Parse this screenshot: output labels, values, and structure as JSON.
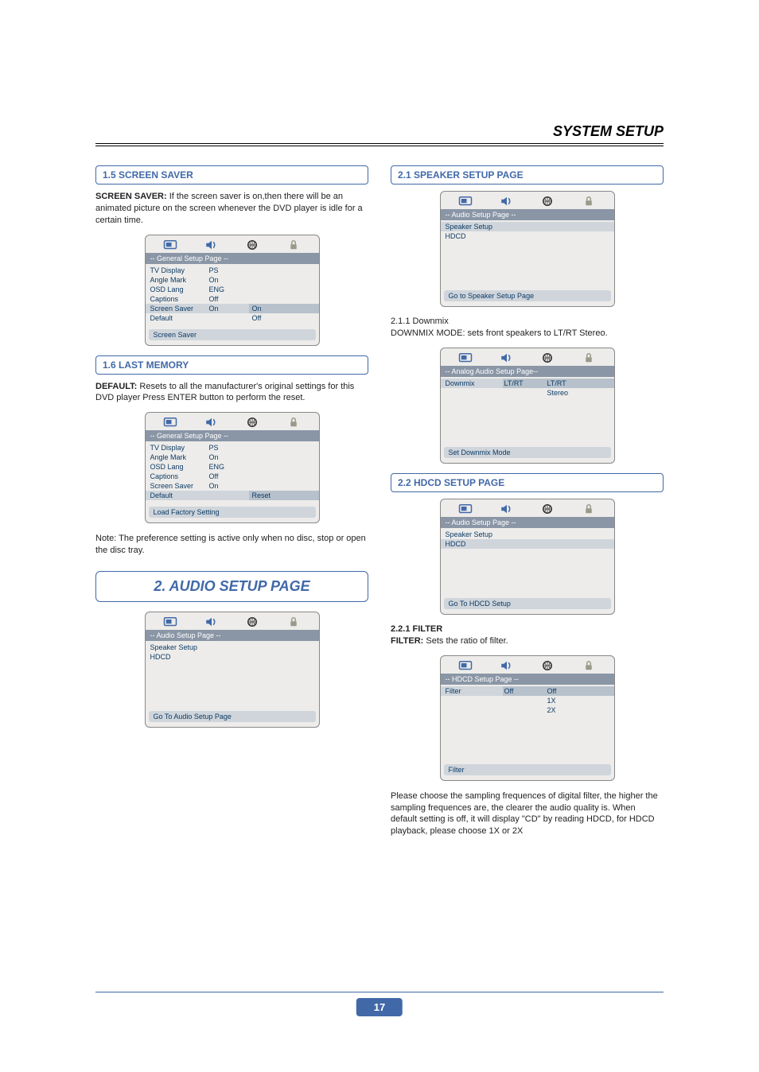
{
  "page_number": "17",
  "header": "SYSTEM SETUP",
  "icons": {
    "tv_color": "#4169a8",
    "speaker_color": "#4169a8",
    "globe_color": "#333333",
    "lock_color": "#9a9a8a"
  },
  "left": {
    "sec15": {
      "title": "1.5 SCREEN SAVER",
      "para_label": "SCREEN SAVER:",
      "para_text": " If the screen saver is on,then there will be an animated picture on the screen  whenever the  DVD  player  is  idle for a certain time.",
      "osd": {
        "title": "-- General Setup Page --",
        "rows": [
          {
            "c1": "TV Display",
            "c2": "PS",
            "c3": ""
          },
          {
            "c1": "Angle Mark",
            "c2": "On",
            "c3": ""
          },
          {
            "c1": "OSD Lang",
            "c2": "ENG",
            "c3": ""
          },
          {
            "c1": "Captions",
            "c2": "Off",
            "c3": ""
          },
          {
            "c1": "Screen Saver",
            "c2": "On",
            "c3": "On",
            "hl": true,
            "hl3": true
          },
          {
            "c1": "Default",
            "c2": "",
            "c3": "Off"
          }
        ],
        "foot": "Screen Saver"
      }
    },
    "sec16": {
      "title": "1.6 LAST MEMORY",
      "para_label": "DEFAULT:",
      "para_text": "  Resets to all the manufacturer's original settings for this DVD player Press ENTER button to perform the reset.",
      "osd": {
        "title": "-- General Setup Page --",
        "rows": [
          {
            "c1": "TV Display",
            "c2": "PS",
            "c3": ""
          },
          {
            "c1": "Angle Mark",
            "c2": "On",
            "c3": ""
          },
          {
            "c1": "OSD Lang",
            "c2": "ENG",
            "c3": ""
          },
          {
            "c1": "Captions",
            "c2": "Off",
            "c3": ""
          },
          {
            "c1": "Screen Saver",
            "c2": "On",
            "c3": ""
          },
          {
            "c1": "Default",
            "c2": "",
            "c3": "Reset",
            "hl": true,
            "hl3": true
          }
        ],
        "foot": "Load Factory Setting"
      },
      "note": " Note: The preference setting is active only when no disc, stop or open the disc tray."
    },
    "sec2": {
      "big": "2. AUDIO SETUP PAGE",
      "osd": {
        "title": "-- Audio Setup Page --",
        "rows": [
          {
            "c1": "Speaker Setup",
            "c2": "",
            "c3": ""
          },
          {
            "c1": "HDCD",
            "c2": "",
            "c3": ""
          }
        ],
        "foot": "Go To Audio Setup Page"
      }
    }
  },
  "right": {
    "sec21": {
      "title": "2.1 SPEAKER SETUP PAGE",
      "osd": {
        "title": "-- Audio Setup Page --",
        "rows": [
          {
            "c1": "Speaker Setup",
            "c2": "",
            "c3": "",
            "hl": true
          },
          {
            "c1": "HDCD",
            "c2": "",
            "c3": ""
          }
        ],
        "foot": "Go to Speaker Setup Page"
      },
      "sub": "2.1.1 Downmix",
      "subtext": "DOWNMIX MODE: sets front speakers  to  LT/RT Stereo.",
      "osd2": {
        "title": "-- Analog Audio Setup Page--",
        "rows": [
          {
            "c1": "Downmix",
            "c2": "LT/RT",
            "c3": "LT/RT",
            "hl": true,
            "hl2": true,
            "hl3": true
          },
          {
            "c1": "",
            "c2": "",
            "c3": "Stereo"
          }
        ],
        "foot": "Set Downmix Mode"
      }
    },
    "sec22": {
      "title": "2.2  HDCD SETUP PAGE",
      "osd": {
        "title": "-- Audio Setup Page --",
        "rows": [
          {
            "c1": "Speaker Setup",
            "c2": "",
            "c3": ""
          },
          {
            "c1": "HDCD",
            "c2": "",
            "c3": "",
            "hl": true
          }
        ],
        "foot": "Go To HDCD Setup"
      },
      "sub": "2.2.1 FILTER",
      "subtext_label": "FILTER:",
      "subtext": " Sets the ratio of filter.",
      "osd2": {
        "title": "-- HDCD Setup Page --",
        "rows": [
          {
            "c1": "Filter",
            "c2": "Off",
            "c3": "Off",
            "hl": true,
            "hl2": true,
            "hl3": true
          },
          {
            "c1": "",
            "c2": "",
            "c3": "1X"
          },
          {
            "c1": "",
            "c2": "",
            "c3": "2X"
          }
        ],
        "foot": "Filter"
      },
      "tail": "Please choose the sampling frequences of digital filter, the higher the sampling frequences are, the clearer the audio quality is. When default setting is off, it will display \"CD\" by reading HDCD, for HDCD playback, please choose 1X or 2X"
    }
  }
}
